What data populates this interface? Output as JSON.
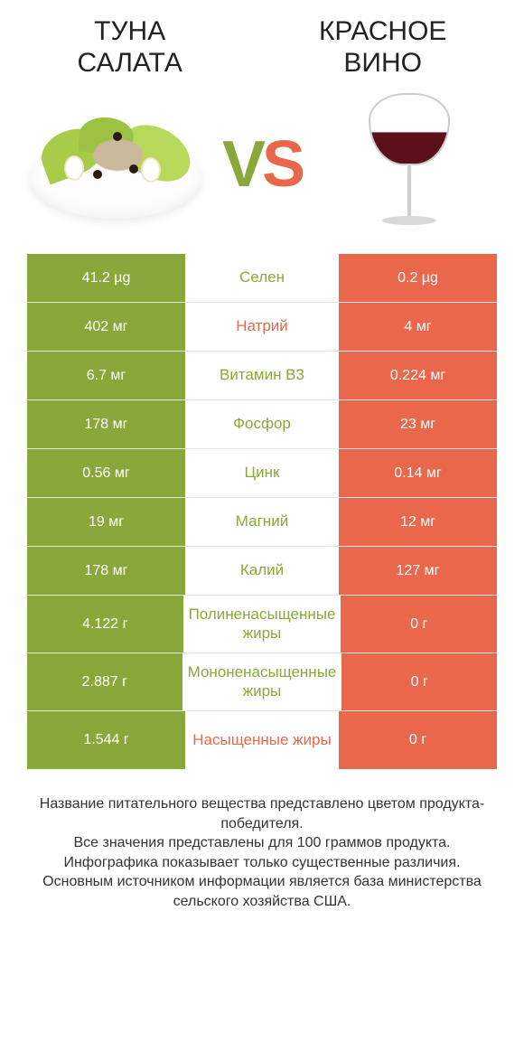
{
  "colors": {
    "left_bg": "#8aa83a",
    "right_bg": "#e9674a",
    "left_text": "#8aa83a",
    "right_text": "#e9674a",
    "cell_text": "#ffffff"
  },
  "header": {
    "left_title_line1": "Туна",
    "left_title_line2": "Салата",
    "right_title_line1": "Красное",
    "right_title_line2": "Вино",
    "vs_v": "V",
    "vs_s": "S"
  },
  "rows": [
    {
      "left": "41.2 µg",
      "mid": "Селен",
      "right": "0.2 µg",
      "winner": "left",
      "tall": false
    },
    {
      "left": "402 мг",
      "mid": "Натрий",
      "right": "4 мг",
      "winner": "right",
      "tall": false
    },
    {
      "left": "6.7 мг",
      "mid": "Витамин B3",
      "right": "0.224 мг",
      "winner": "left",
      "tall": false
    },
    {
      "left": "178 мг",
      "mid": "Фосфор",
      "right": "23 мг",
      "winner": "left",
      "tall": false
    },
    {
      "left": "0.56 мг",
      "mid": "Цинк",
      "right": "0.14 мг",
      "winner": "left",
      "tall": false
    },
    {
      "left": "19 мг",
      "mid": "Магний",
      "right": "12 мг",
      "winner": "left",
      "tall": false
    },
    {
      "left": "178 мг",
      "mid": "Калий",
      "right": "127 мг",
      "winner": "left",
      "tall": false
    },
    {
      "left": "4.122 г",
      "mid": "Полиненасыщенные жиры",
      "right": "0 г",
      "winner": "left",
      "tall": true
    },
    {
      "left": "2.887 г",
      "mid": "Мононенасыщенные жиры",
      "right": "0 г",
      "winner": "left",
      "tall": true
    },
    {
      "left": "1.544 г",
      "mid": "Насыщенные жиры",
      "right": "0 г",
      "winner": "right",
      "tall": true
    }
  ],
  "footer": {
    "line1": "Название питательного вещества представлено цветом продукта-победителя.",
    "line2": "Все значения представлены для 100 граммов продукта.",
    "line3": "Инфографика показывает только существенные различия.",
    "line4": "Основным источником информации является база министерства сельского хозяйства США."
  }
}
